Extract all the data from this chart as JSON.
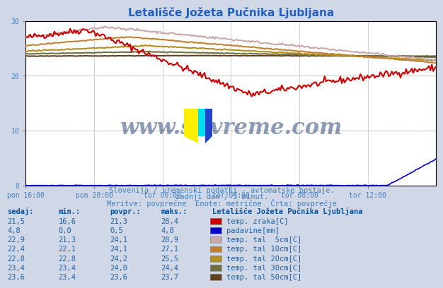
{
  "title": "Letališče Jožeta Pučnika Ljubljana",
  "subtitle1": "Slovenija / vremenski podatki - avtomatske postaje.",
  "subtitle2": "zadnji dan / 5 minut.",
  "subtitle3": "Meritve: povprečne  Enote: metrične  Črta: povprečje",
  "bg_color": "#d0d8e8",
  "plot_bg_color": "#ffffff",
  "grid_color_major": "#c0c0c0",
  "grid_color_minor": "#e0e0e0",
  "x_tick_labels": [
    "pon 16:00",
    "pon 20:00",
    "tor 00:00",
    "tor 04:00",
    "tor 08:00",
    "tor 12:00"
  ],
  "ylim": [
    0,
    30
  ],
  "yticks": [
    0,
    10,
    20,
    30
  ],
  "xlabel_color": "#4080c0",
  "title_color": "#2060c0",
  "watermark": "www.si-vreme.com",
  "watermark_color": "#1a3a6a",
  "n_points": 288,
  "series": {
    "temp_zraka": {
      "color": "#cc0000",
      "label": "temp. zraka[C]",
      "legend_color": "#cc0000",
      "sedaj": 21.5,
      "min": 16.6,
      "povpr": 21.3,
      "maks": 28.4
    },
    "padavine": {
      "color": "#0000cc",
      "label": "padavine[mm]",
      "legend_color": "#0000cc",
      "sedaj": 4.8,
      "min": 0.0,
      "povpr": 0.5,
      "maks": 4.8
    },
    "tal_5cm": {
      "color": "#c8a8a8",
      "label": "temp. tal  5cm[C]",
      "legend_color": "#c8a8a8",
      "sedaj": 22.9,
      "min": 21.3,
      "povpr": 24.1,
      "maks": 28.9
    },
    "tal_10cm": {
      "color": "#c08030",
      "label": "temp. tal 10cm[C]",
      "legend_color": "#c08030",
      "sedaj": 22.4,
      "min": 22.1,
      "povpr": 24.1,
      "maks": 27.1
    },
    "tal_20cm": {
      "color": "#b09020",
      "label": "temp. tal 20cm[C]",
      "legend_color": "#b09020",
      "sedaj": 22.8,
      "min": 22.8,
      "povpr": 24.2,
      "maks": 25.5
    },
    "tal_30cm": {
      "color": "#707040",
      "label": "temp. tal 30cm[C]",
      "legend_color": "#707040",
      "sedaj": 23.4,
      "min": 23.4,
      "povpr": 24.0,
      "maks": 24.4
    },
    "tal_50cm": {
      "color": "#604020",
      "label": "temp. tal 50cm[C]",
      "legend_color": "#604020",
      "sedaj": 23.6,
      "min": 23.4,
      "povpr": 23.6,
      "maks": 23.7
    }
  },
  "table_header": [
    "sedaj:",
    "min.:",
    "povpr.:",
    "maks.:"
  ],
  "table_station": "Letališče Jožeta Pučnika Ljubljana",
  "table_color": "#2060a0"
}
